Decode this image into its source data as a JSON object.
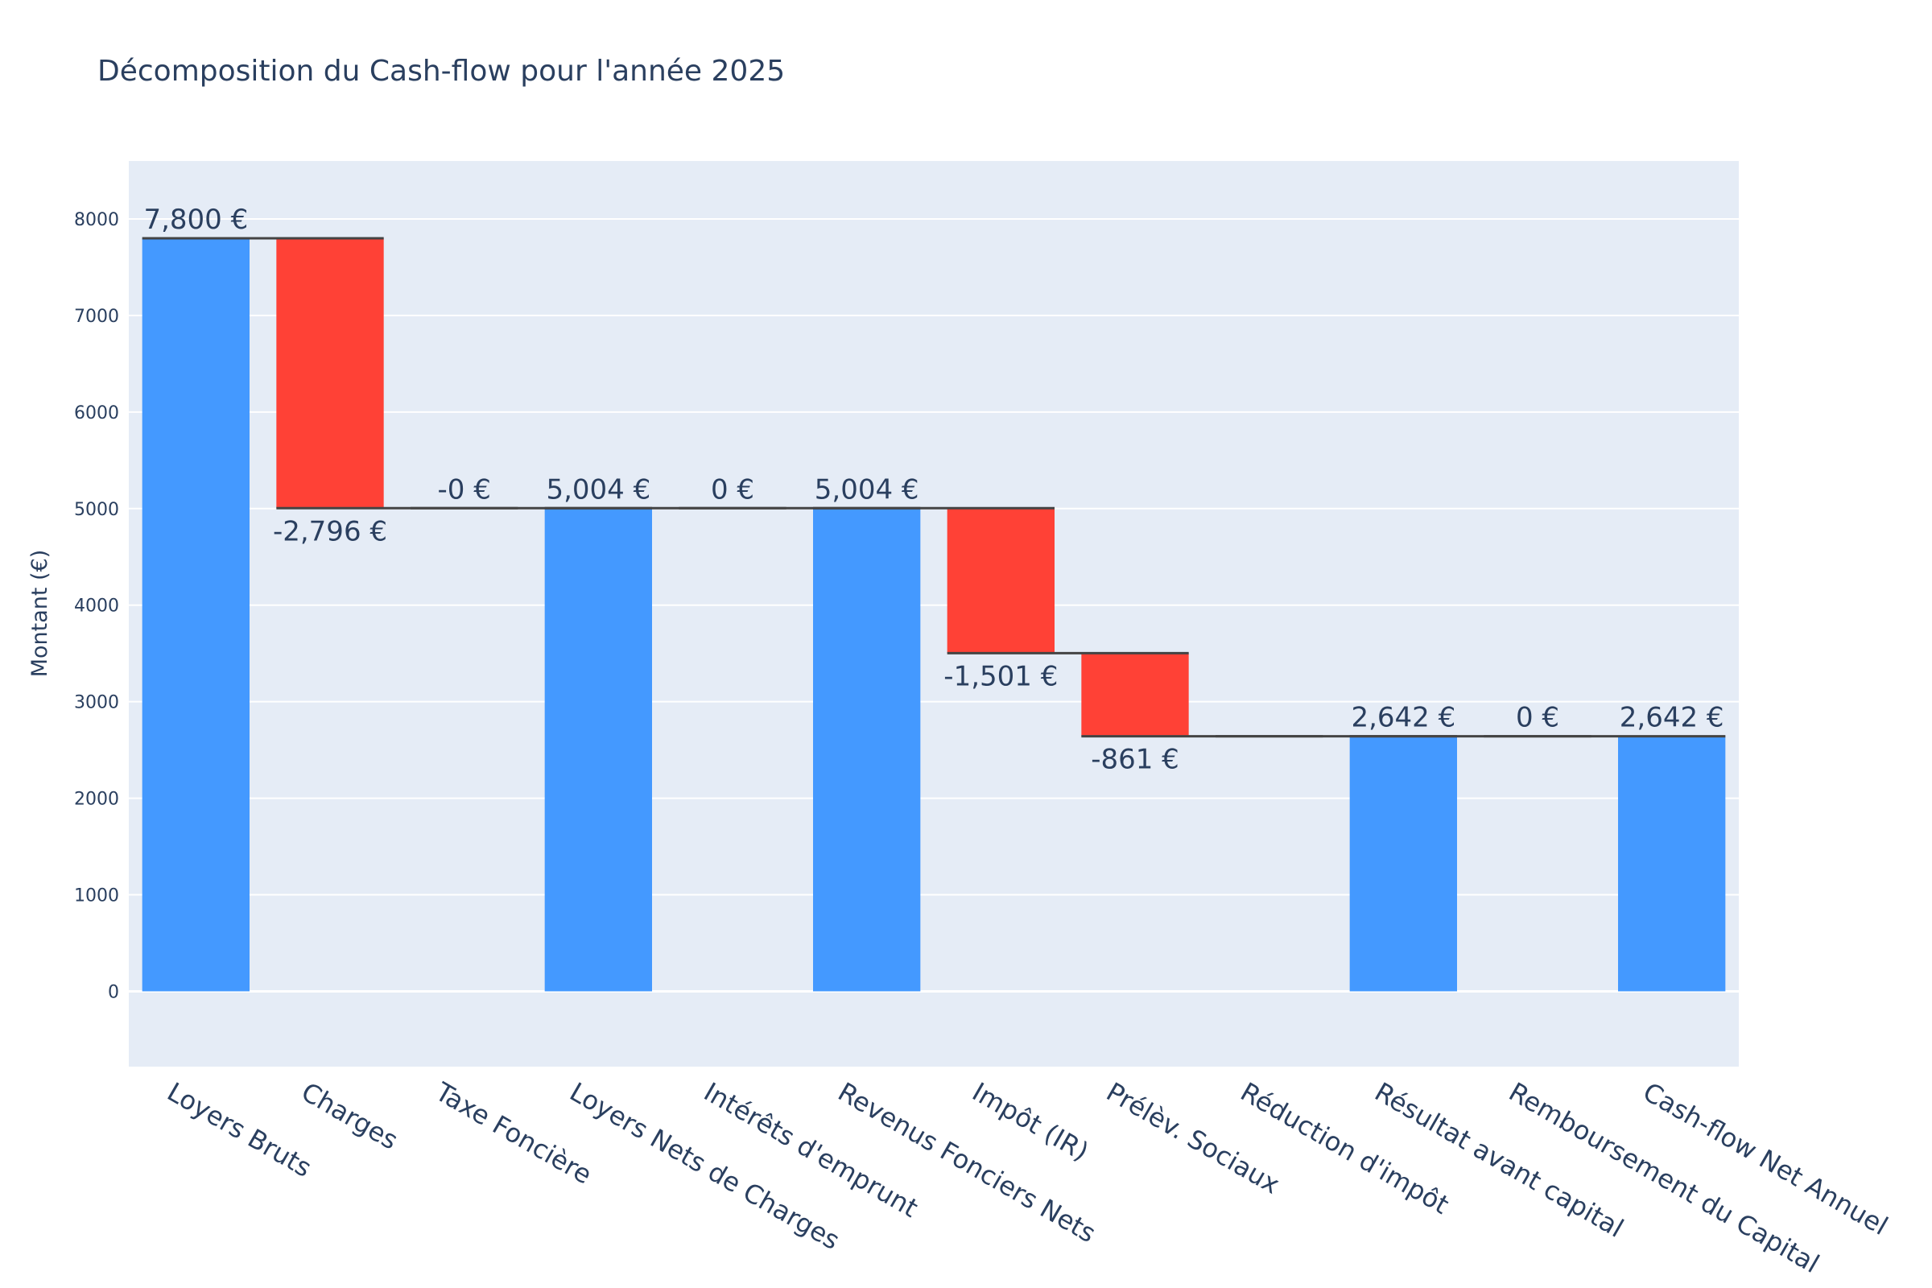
{
  "chart_data": {
    "type": "waterfall",
    "title": "Décomposition du Cash-flow pour l'année 2025",
    "xlabel": "",
    "ylabel": "Montant (€)",
    "ylim": [
      -780,
      8600
    ],
    "yticks": [
      0,
      1000,
      2000,
      3000,
      4000,
      5000,
      6000,
      7000,
      8000
    ],
    "grid": true,
    "colors": {
      "increase": "#4499ff",
      "decrease": "#ff4136",
      "total": "#4499ff",
      "connector": "#444444",
      "plot_bg": "#e5ecf6"
    },
    "categories": [
      "Loyers Bruts",
      "Charges",
      "Taxe Foncière",
      "Loyers Nets de Charges",
      "Intérêts d'emprunt",
      "Revenus Fonciers Nets",
      "Impôt (IR)",
      "Prélèv. Sociaux",
      "Réduction d'impôt",
      "Résultat avant capital",
      "Remboursement du Capital",
      "Cash-flow Net Annuel"
    ],
    "measure": [
      "absolute",
      "relative",
      "relative",
      "total",
      "relative",
      "total",
      "relative",
      "relative",
      "relative",
      "total",
      "relative",
      "total"
    ],
    "values": [
      7800,
      -2796,
      0,
      5004,
      0,
      5004,
      -1501,
      -861,
      0,
      2642,
      0,
      2642
    ],
    "labels": [
      "7,800 €",
      "-2,796 €",
      "-0 €",
      "5,004 €",
      "0 €",
      "5,004 €",
      "-1,501 €",
      "-861 €",
      "",
      "2,642 €",
      "0 €",
      "2,642 €"
    ]
  }
}
